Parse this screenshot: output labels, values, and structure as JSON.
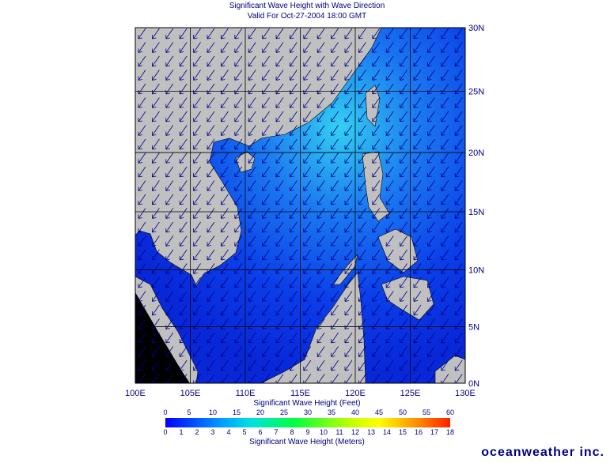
{
  "header": {
    "title": "Significant Wave Height with Wave Direction",
    "subtitle": "Valid For Oct-27-2004 18:00 GMT"
  },
  "map": {
    "lon_ticks": [
      {
        "value": 100,
        "label": "100E"
      },
      {
        "value": 105,
        "label": "105E"
      },
      {
        "value": 110,
        "label": "110E"
      },
      {
        "value": 115,
        "label": "115E"
      },
      {
        "value": 120,
        "label": "120E"
      },
      {
        "value": 125,
        "label": "125E"
      },
      {
        "value": 130,
        "label": "130E"
      }
    ],
    "lat_ticks": [
      {
        "value": 0,
        "label": "0N"
      },
      {
        "value": 5,
        "label": "5N"
      },
      {
        "value": 10,
        "label": "10N"
      },
      {
        "value": 15,
        "label": "15N"
      },
      {
        "value": 20,
        "label": "20N"
      },
      {
        "value": 25,
        "label": "25N"
      },
      {
        "value": 30,
        "label": "30N"
      }
    ]
  },
  "colorbar": {
    "feet_title": "Significant Wave Height (Feet)",
    "feet_ticks": [
      0,
      5,
      10,
      15,
      20,
      25,
      30,
      35,
      40,
      45,
      50,
      55,
      60
    ],
    "meters_title": "Significant Wave Height (Meters)",
    "meters_ticks": [
      0,
      1,
      2,
      3,
      4,
      5,
      6,
      7,
      8,
      9,
      10,
      11,
      12,
      13,
      14,
      15,
      16,
      17,
      18
    ]
  },
  "footer": {
    "brand": "oceanweather inc."
  }
}
